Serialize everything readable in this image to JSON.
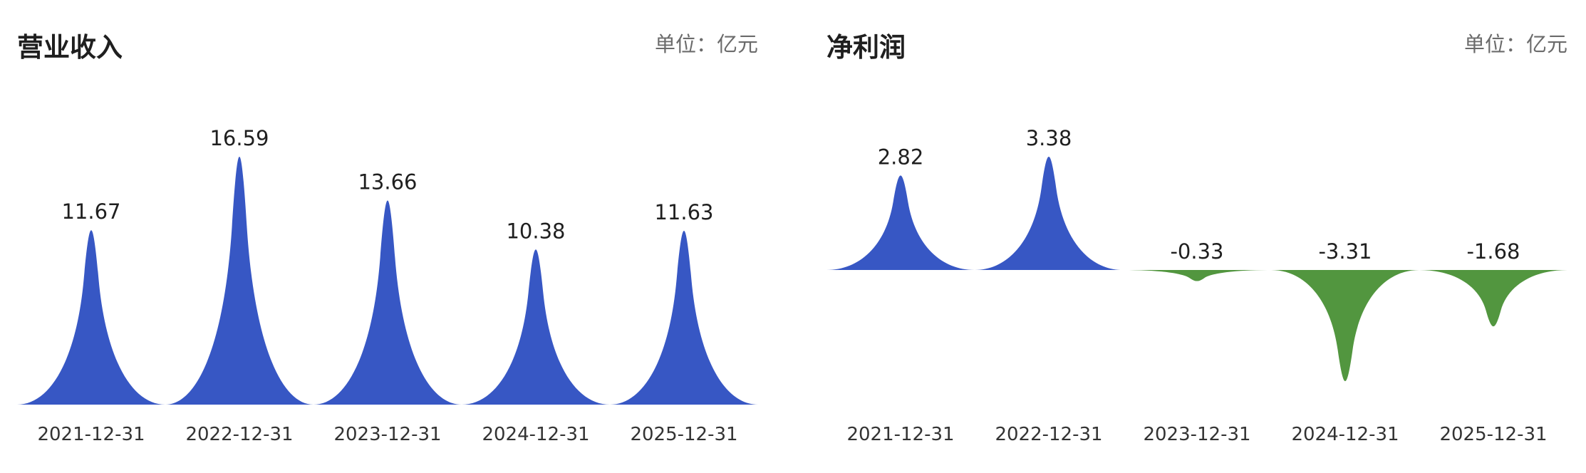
{
  "colors": {
    "positive": "#3757c4",
    "negative": "#52963f"
  },
  "charts": [
    {
      "title": "营业收入",
      "unit_label": "单位：亿元",
      "chart_data": {
        "type": "area",
        "categories": [
          "2021-12-31",
          "2022-12-31",
          "2023-12-31",
          "2024-12-31",
          "2025-12-31"
        ],
        "values": [
          11.67,
          16.59,
          13.66,
          10.38,
          11.63
        ],
        "value_labels": [
          "11.67",
          "16.59",
          "13.66",
          "10.38",
          "11.63"
        ],
        "ylim": [
          0,
          16.59
        ]
      }
    },
    {
      "title": "净利润",
      "unit_label": "单位：亿元",
      "chart_data": {
        "type": "area",
        "categories": [
          "2021-12-31",
          "2022-12-31",
          "2023-12-31",
          "2024-12-31",
          "2025-12-31"
        ],
        "values": [
          2.82,
          3.38,
          -0.33,
          -3.31,
          -1.68
        ],
        "value_labels": [
          "2.82",
          "3.38",
          "-0.33",
          "-3.31",
          "-1.68"
        ],
        "ylim": [
          -3.31,
          3.38
        ]
      }
    }
  ]
}
